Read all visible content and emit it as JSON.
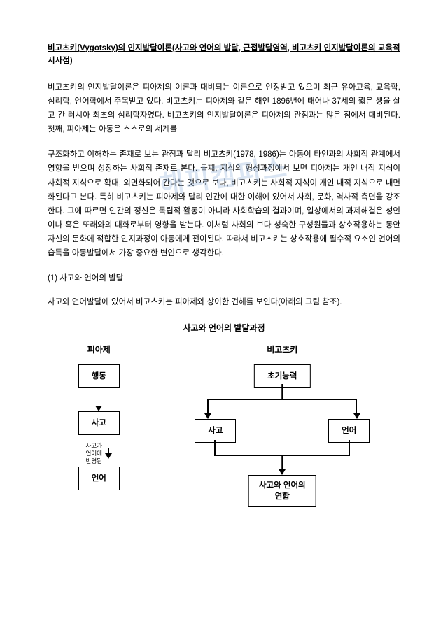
{
  "title": "비고츠키(Vygotsky)의 인지발달이론(사고와 언어의 발달, 근접발달영역, 비고츠키 인지발달이론의 교육적 시사점)",
  "para1": "비고츠키의 인지발달이론은 피아제의 이론과 대비되는 이론으로 인정받고 있으며 최근 유아교육, 교육학, 심리학, 언어학에서 주목받고 있다. 비고츠키는 피아제와 같은 해인 1896년에 태어나 37세의 짧은 생을 살고 간 러시아 최초의 심리학자였다. 비고츠키의 인지발달이론은 피아제의 관점과는 많은 점에서 대비된다. 첫째, 피아제는 아동은 스스로의 세계를",
  "para2": "구조화하고 이해하는 존재로 보는 관점과 달리 비고츠키(1978, 1986)는 아동이 타인과의 사회적 관계에서 영향을 받으며 성장하는 사회적 존재로 본다. 둘째, 지식의 형성과정에서 보면 피아제는 개인 내적 지식이 사회적 지식으로 확대, 외면화되어 간다는 것으로 보나, 비고츠키는 사회적 지식이 개인 내적 지식으로 내면화된다고 본다. 특히 비고츠키는 피아제와 달리 인간에 대한 이해에 있어서 사회, 문화, 역사적 측면을 강조한다. 그에 따르면 인간의 정신은 독립적 활동이 아니라 사회학습의 결과이며, 일상에서의 과제해결은 성인이나 혹은 또래와의 대화로부터 영향을 받는다. 이처럼 사회의 보다 성숙한 구성원들과 상호작용하는 동안 자신의 문화에 적합한 인지과정이 아동에게 전이된다. 따라서 비고츠키는 상호작용에 필수적 요소인 언어의 습득을 아동발달에서 가장 중요한 변인으로 생각한다.",
  "section1_head": "(1) 사고와 언어의 발달",
  "section1_body": "사고와 언어발달에 있어서 비고츠키는 피아제와 상이한 견해를 보인다(아래의 그림 참조).",
  "diagram": {
    "title": "사고와 언어의 발달과정",
    "piaget": {
      "label": "피아제",
      "b1": "행동",
      "b2": "사고",
      "note": "사고가\n언어에\n반영됨",
      "b3": "언어"
    },
    "vygotsky": {
      "label": "비고츠키",
      "top": "초기능력",
      "left": "사고",
      "right": "언어",
      "bottom": "사고와 언어의\n연합"
    }
  },
  "watermark": "해피캠퍼스",
  "colors": {
    "text": "#000000",
    "bg": "#ffffff",
    "border": "#000000",
    "watermark": "rgba(150,180,220,0.35)"
  }
}
